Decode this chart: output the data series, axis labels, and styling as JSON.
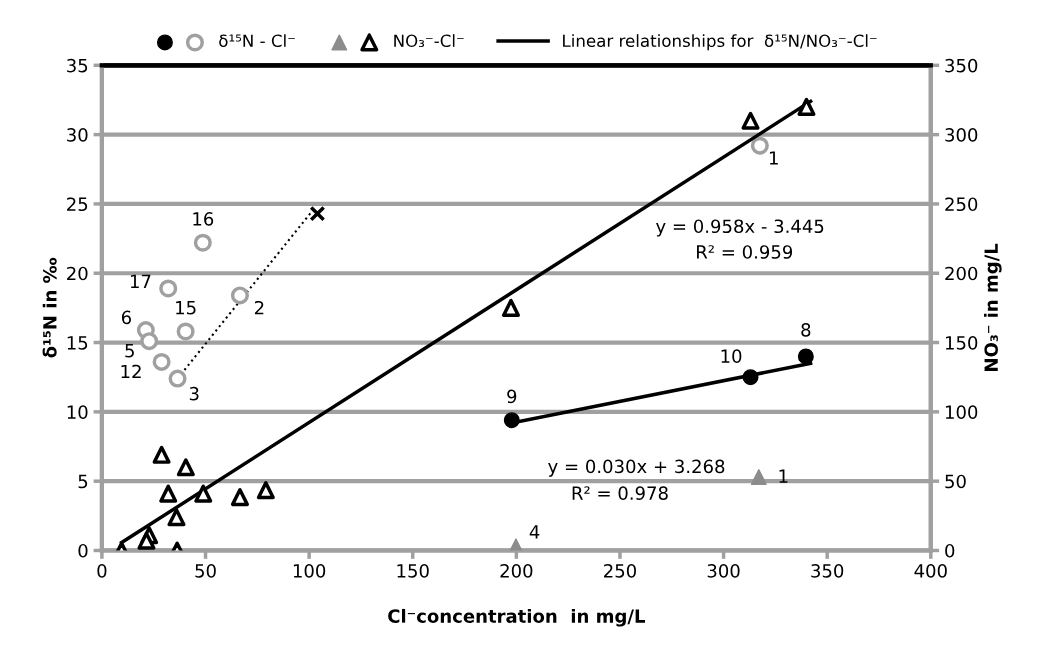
{
  "chart_data": {
    "type": "scatter",
    "xlabel": "Cl⁻concentration  in mg/L",
    "ylabel": "δ¹⁵N in ‰",
    "y2label": "NO₃⁻ in mg/L",
    "xlim": [
      0,
      400
    ],
    "xticks": [
      0,
      50,
      100,
      150,
      200,
      250,
      300,
      350,
      400
    ],
    "ylim": [
      0,
      35
    ],
    "yticks": [
      0,
      5,
      10,
      15,
      20,
      25,
      30,
      35
    ],
    "y2lim": [
      0,
      350
    ],
    "y2ticks": [
      0,
      50,
      100,
      150,
      200,
      250,
      300,
      350
    ],
    "grid": "y",
    "legend": "top",
    "series": [
      {
        "name": "δ¹⁵N - Cl⁻",
        "marker": "circle",
        "color": "#a0a0a0",
        "x": [
          317.5,
          48.7,
          32,
          66.6,
          21.2,
          22.8,
          40.4,
          28.8,
          36.5
        ],
        "values": [
          29.2,
          22.2,
          18.9,
          18.4,
          15.9,
          15.1,
          15.8,
          13.6,
          12.4
        ]
      },
      {
        "marker": "circle",
        "color": "#000000",
        "x": [
          197.8,
          313,
          339.7
        ],
        "values": [
          9.4,
          12.5,
          14.0
        ]
      },
      {
        "name": "NO₃⁻-Cl⁻",
        "marker": "triangle",
        "axis": "y2",
        "color": "#000000",
        "x": [
          313,
          340,
          197.4,
          28.8,
          40.5,
          32,
          48.9,
          66.6,
          79.1,
          36,
          22.8,
          21.5,
          36.3,
          9.5
        ],
        "values": [
          310,
          320,
          175,
          69,
          60,
          41,
          41,
          38.5,
          43.5,
          24,
          11,
          7,
          0,
          0
        ]
      },
      {
        "marker": "triangle",
        "axis": "y2",
        "color": "#8c8c8c",
        "x": [
          317,
          199.8
        ],
        "values": [
          53,
          3
        ]
      },
      {
        "name": "Linear relationships for  δ¹⁵N/NO₃⁻-Cl⁻",
        "type": "line",
        "axis": "y2",
        "color": "#000000",
        "line_style": "solid",
        "x": [
          9.5,
          342
        ],
        "values": [
          5.7,
          324
        ]
      },
      {
        "type": "line",
        "color": "#000000",
        "line_style": "solid",
        "x": [
          197.8,
          342
        ],
        "values": [
          9.2,
          13.5
        ]
      },
      {
        "type": "line",
        "color": "#000000",
        "line_style": "dotted",
        "x": [
          36.5,
          101
        ],
        "values": [
          12.4,
          24.4
        ]
      },
      {
        "marker": "cross",
        "color": "#000000",
        "x": [
          104
        ],
        "values": [
          24.3
        ]
      }
    ],
    "annotations": [
      {
        "text": "1",
        "x": 317.5,
        "y": 29.2
      },
      {
        "text": "16",
        "x": 48.7,
        "y": 22.2
      },
      {
        "text": "17",
        "x": 32,
        "y": 18.9
      },
      {
        "text": "2",
        "x": 66.6,
        "y": 18.4
      },
      {
        "text": "6",
        "x": 21.2,
        "y": 15.9
      },
      {
        "text": "15",
        "x": 40.4,
        "y": 15.8
      },
      {
        "text": "5",
        "x": 22.8,
        "y": 15.1
      },
      {
        "text": "12",
        "x": 28.8,
        "y": 13.6
      },
      {
        "text": "3",
        "x": 36.5,
        "y": 12.4
      },
      {
        "text": "9",
        "x": 197.8,
        "y": 9.4
      },
      {
        "text": "10",
        "x": 313,
        "y": 12.5
      },
      {
        "text": "8",
        "x": 339.7,
        "y": 14.0
      },
      "1",
      "4",
      "y = 0.958x - 3.445",
      "R² = 0.959",
      "y = 0.030x + 3.268",
      "R² = 0.978"
    ]
  }
}
